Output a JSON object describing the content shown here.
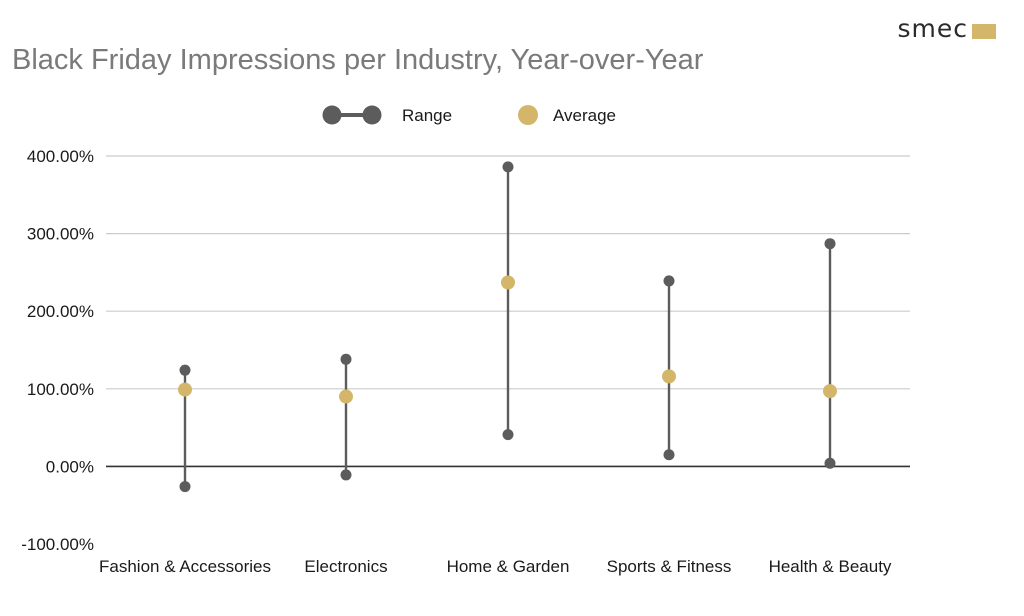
{
  "logo": {
    "text": "smec",
    "color": "#d4b66a"
  },
  "chart_data": {
    "type": "scatter",
    "title": "Black Friday Impressions per Industry, Year-over-Year",
    "xlabel": "",
    "ylabel": "",
    "categories": [
      "Fashion & Accessories",
      "Electronics",
      "Home & Garden",
      "Sports & Fitness",
      "Health & Beauty"
    ],
    "series": [
      {
        "name": "Range",
        "kind": "range",
        "min": [
          -26,
          -11,
          41,
          15,
          4
        ],
        "max": [
          124,
          138,
          386,
          239,
          287
        ]
      },
      {
        "name": "Average",
        "kind": "point",
        "values": [
          99,
          90,
          237,
          116,
          97
        ]
      }
    ],
    "yticks": [
      -100,
      0,
      100,
      200,
      300,
      400
    ],
    "ytick_labels": [
      "-100.00%",
      "0.00%",
      "100.00%",
      "200.00%",
      "300.00%",
      "400.00%"
    ],
    "ylim": [
      -100,
      400
    ],
    "grid": true,
    "legend_position": "top-center",
    "colors": {
      "range": "#5c5c5c",
      "average": "#d4b66a",
      "grid": "#cccccc",
      "zero_line": "#333333"
    }
  }
}
